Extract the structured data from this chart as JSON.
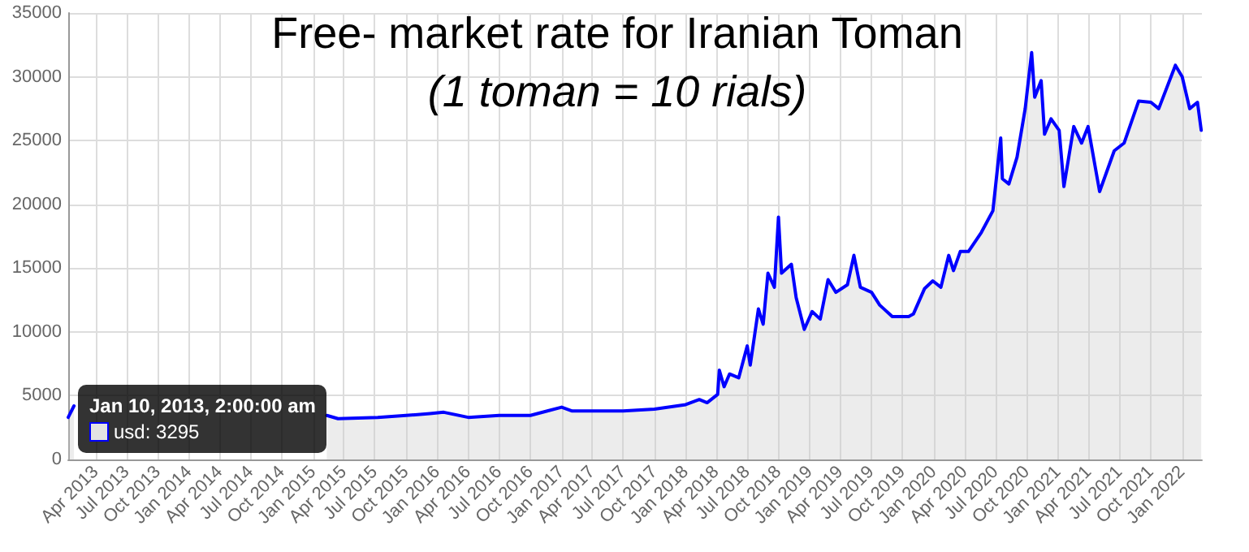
{
  "chart_data": {
    "type": "area",
    "title": "Free- market rate for Iranian Toman",
    "subtitle": "(1 toman = 10 rials)",
    "x": [
      "2013-01-10",
      "2013-01-27",
      "2013-02-15",
      "2013-03-10",
      "2013-05-08",
      "2013-06-01",
      "2013-06-25",
      "2013-08-12",
      "2013-10-13",
      "2014-01-18",
      "2014-04-22",
      "2014-08-10",
      "2014-10-16",
      "2014-12-18",
      "2015-02-10",
      "2015-03-15",
      "2015-07-10",
      "2015-10-01",
      "2015-12-10",
      "2016-01-20",
      "2016-04-01",
      "2016-07-01",
      "2016-10-01",
      "2016-11-20",
      "2017-01-01",
      "2017-02-01",
      "2017-07-01",
      "2017-10-01",
      "2018-01-01",
      "2018-02-10",
      "2018-03-05",
      "2018-04-05",
      "2018-04-10",
      "2018-04-24",
      "2018-05-10",
      "2018-06-06",
      "2018-07-01",
      "2018-07-10",
      "2018-08-03",
      "2018-08-17",
      "2018-08-31",
      "2018-09-19",
      "2018-10-01",
      "2018-10-10",
      "2018-11-08",
      "2018-11-22",
      "2018-12-16",
      "2019-01-08",
      "2019-02-01",
      "2019-02-24",
      "2019-03-19",
      "2019-04-22",
      "2019-05-11",
      "2019-05-30",
      "2019-07-02",
      "2019-07-26",
      "2019-09-01",
      "2019-10-19",
      "2019-11-02",
      "2019-12-05",
      "2019-12-29",
      "2020-01-22",
      "2020-02-14",
      "2020-02-28",
      "2020-03-19",
      "2020-04-12",
      "2020-05-20",
      "2020-06-23",
      "2020-07-16",
      "2020-07-21",
      "2020-08-09",
      "2020-09-02",
      "2020-09-26",
      "2020-10-15",
      "2020-10-24",
      "2020-11-12",
      "2020-11-22",
      "2020-12-11",
      "2021-01-04",
      "2021-01-18",
      "2021-02-16",
      "2021-03-11",
      "2021-03-30",
      "2021-05-03",
      "2021-06-15",
      "2021-07-14",
      "2021-08-26",
      "2021-10-01",
      "2021-10-24",
      "2021-12-12",
      "2022-01-01",
      "2022-01-23",
      "2022-02-15",
      "2022-02-26"
    ],
    "series": [
      {
        "color": "#0000ff",
        "values": [
          3300,
          4200,
          null,
          null,
          null,
          null,
          null,
          null,
          null,
          null,
          null,
          null,
          null,
          null,
          3450,
          3200,
          3300,
          3450,
          3600,
          3700,
          3300,
          3450,
          3450,
          3800,
          4100,
          3800,
          3800,
          3950,
          4300,
          4700,
          4450,
          5100,
          7000,
          5700,
          6700,
          6400,
          8900,
          7400,
          11800,
          10600,
          14600,
          13500,
          19000,
          14600,
          15300,
          12700,
          10200,
          11600,
          11000,
          14100,
          13100,
          13700,
          16000,
          13500,
          13100,
          12100,
          11200,
          11200,
          11400,
          13400,
          14000,
          13500,
          16000,
          14800,
          16300,
          16300,
          17800,
          19500,
          25200,
          22000,
          21600,
          23700,
          27500,
          31900,
          28400,
          29700,
          25500,
          26700,
          25800,
          21400,
          26100,
          24800,
          26100,
          21000,
          24200,
          24800,
          28100,
          28000,
          27500,
          30900,
          30000,
          27500,
          28000,
          25800
        ]
      }
    ],
    "xlim": [
      "2013-01-10",
      "2022-02-28"
    ],
    "xticks": [
      {
        "value": "2013-04-01",
        "label": "Apr 2013"
      },
      {
        "value": "2013-07-01",
        "label": "Jul 2013"
      },
      {
        "value": "2013-10-01",
        "label": "Oct 2013"
      },
      {
        "value": "2014-01-01",
        "label": "Jan 2014"
      },
      {
        "value": "2014-04-01",
        "label": "Apr 2014"
      },
      {
        "value": "2014-07-01",
        "label": "Jul 2014"
      },
      {
        "value": "2014-10-01",
        "label": "Oct 2014"
      },
      {
        "value": "2015-01-01",
        "label": "Jan 2015"
      },
      {
        "value": "2015-04-01",
        "label": "Apr 2015"
      },
      {
        "value": "2015-07-01",
        "label": "Jul 2015"
      },
      {
        "value": "2015-10-01",
        "label": "Oct 2015"
      },
      {
        "value": "2016-01-01",
        "label": "Jan 2016"
      },
      {
        "value": "2016-04-01",
        "label": "Apr 2016"
      },
      {
        "value": "2016-07-01",
        "label": "Jul 2016"
      },
      {
        "value": "2016-10-01",
        "label": "Oct 2016"
      },
      {
        "value": "2017-01-01",
        "label": "Jan 2017"
      },
      {
        "value": "2017-04-01",
        "label": "Apr 2017"
      },
      {
        "value": "2017-07-01",
        "label": "Jul 2017"
      },
      {
        "value": "2017-10-01",
        "label": "Oct 2017"
      },
      {
        "value": "2018-01-01",
        "label": "Jan 2018"
      },
      {
        "value": "2018-04-01",
        "label": "Apr 2018"
      },
      {
        "value": "2018-07-01",
        "label": "Jul 2018"
      },
      {
        "value": "2018-10-01",
        "label": "Oct 2018"
      },
      {
        "value": "2019-01-01",
        "label": "Jan 2019"
      },
      {
        "value": "2019-04-01",
        "label": "Apr 2019"
      },
      {
        "value": "2019-07-01",
        "label": "Jul 2019"
      },
      {
        "value": "2019-10-01",
        "label": "Oct 2019"
      },
      {
        "value": "2020-01-01",
        "label": "Jan 2020"
      },
      {
        "value": "2020-04-01",
        "label": "Apr 2020"
      },
      {
        "value": "2020-07-01",
        "label": "Jul 2020"
      },
      {
        "value": "2020-10-01",
        "label": "Oct 2020"
      },
      {
        "value": "2021-01-01",
        "label": "Jan 2021"
      },
      {
        "value": "2021-04-01",
        "label": "Apr 2021"
      },
      {
        "value": "2021-07-01",
        "label": "Jul 2021"
      },
      {
        "value": "2021-10-01",
        "label": "Oct 2021"
      },
      {
        "value": "2022-01-01",
        "label": "Jan 2022"
      }
    ],
    "ylim": [
      0,
      35000
    ],
    "yticks": [
      0,
      5000,
      10000,
      15000,
      20000,
      25000,
      30000,
      35000
    ],
    "annotations": [
      {
        "text": "Jan 10, 2013, 2:00:00 am",
        "x": "2013-01-10",
        "y": 3295
      },
      "usd: 3295"
    ],
    "grid": true,
    "marker": "none",
    "line_style": "solid"
  }
}
